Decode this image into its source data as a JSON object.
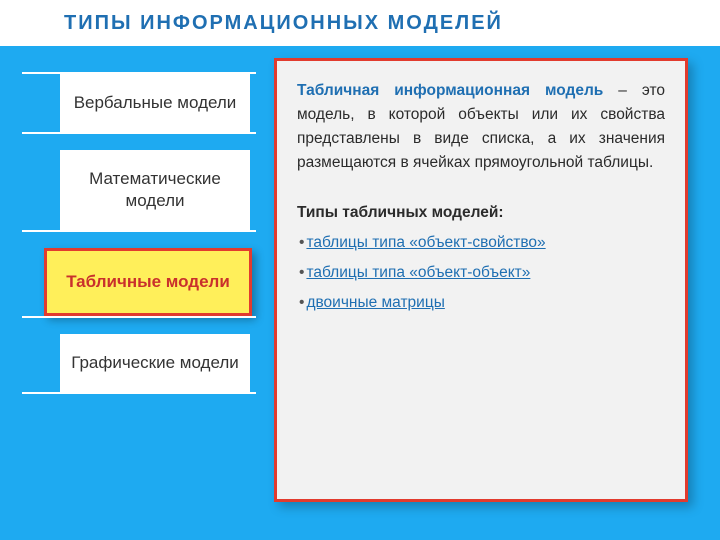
{
  "title": "ТИПЫ  ИНФОРМАЦИОННЫХ  МОДЕЛЕЙ",
  "colors": {
    "title": "#1f6fb2",
    "background_main": "#1eaaf1",
    "item_bg": "#ffffff",
    "active_bg": "#ffef5a",
    "active_text": "#c9302c",
    "active_border": "#e23b2e",
    "content_bg": "#f2f2f2",
    "content_border": "#e23b2e",
    "link": "#1f6fb2"
  },
  "sidebar": {
    "items": [
      {
        "label": "Вербальные модели",
        "active": false
      },
      {
        "label": "Математические модели",
        "active": false
      },
      {
        "label": "Табличные модели",
        "active": true
      },
      {
        "label": "Графические модели",
        "active": false
      }
    ]
  },
  "content": {
    "definition_term": "Табличная информационная модель",
    "definition_rest": " – это модель, в которой объекты или их свойства представлены в виде списка, а их значения размещаются в ячейках прямоугольной таблицы.",
    "list_heading": "Типы табличных моделей:",
    "list_items": [
      "таблицы типа «объект-свойство»",
      "таблицы типа «объект-объект»",
      "двоичные матрицы"
    ]
  }
}
